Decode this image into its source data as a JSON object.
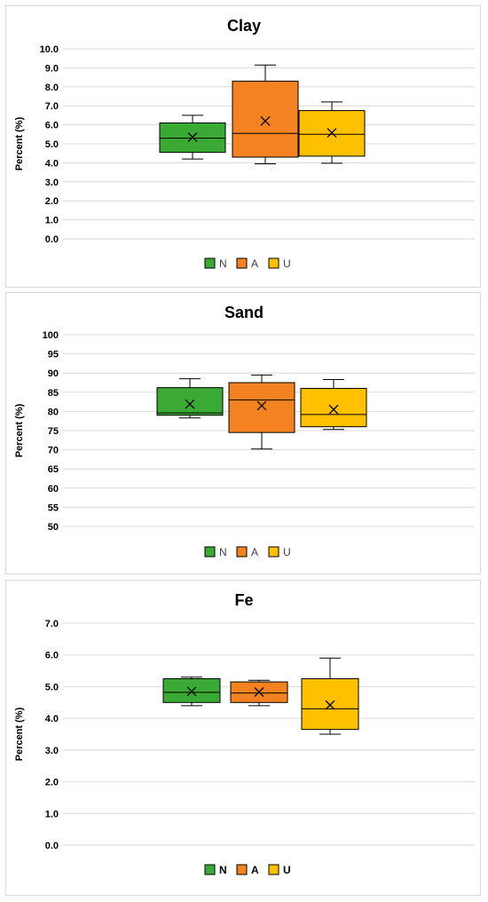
{
  "chart_data": [
    {
      "type": "box",
      "title": "Clay",
      "ylabel": "Percent (%)",
      "xlabel": "",
      "ylim": [
        0,
        10
      ],
      "y_ticks": [
        "0.0",
        "1.0",
        "2.0",
        "3.0",
        "4.0",
        "5.0",
        "6.0",
        "7.0",
        "8.0",
        "9.0",
        "10.0"
      ],
      "legend": "bottom",
      "grid": true,
      "series": [
        {
          "name": "N",
          "color": "#3aaa35",
          "min": 4.2,
          "q1": 4.55,
          "median": 5.3,
          "q3": 6.1,
          "max": 6.5,
          "mean": 5.35
        },
        {
          "name": "A",
          "color": "#f58220",
          "min": 3.95,
          "q1": 4.3,
          "median": 5.55,
          "q3": 8.3,
          "max": 9.15,
          "mean": 6.2
        },
        {
          "name": "U",
          "color": "#ffc000",
          "min": 3.98,
          "q1": 4.35,
          "median": 5.5,
          "q3": 6.75,
          "max": 7.2,
          "mean": 5.58
        }
      ]
    },
    {
      "type": "box",
      "title": "Sand",
      "ylabel": "Percent (%)",
      "xlabel": "",
      "ylim": [
        50,
        100
      ],
      "y_ticks": [
        "50",
        "55",
        "60",
        "65",
        "70",
        "75",
        "80",
        "85",
        "90",
        "95",
        "100"
      ],
      "legend": "bottom",
      "grid": true,
      "series": [
        {
          "name": "N",
          "color": "#3aaa35",
          "min": 78.3,
          "q1": 79.0,
          "median": 79.6,
          "q3": 86.2,
          "max": 88.5,
          "mean": 81.9
        },
        {
          "name": "A",
          "color": "#f58220",
          "min": 70.2,
          "q1": 74.5,
          "median": 83.0,
          "q3": 87.5,
          "max": 89.5,
          "mean": 81.5
        },
        {
          "name": "U",
          "color": "#ffc000",
          "min": 75.3,
          "q1": 76.0,
          "median": 79.2,
          "q3": 86.0,
          "max": 88.3,
          "mean": 80.5
        }
      ]
    },
    {
      "type": "box",
      "title": "Fe",
      "ylabel": "Percent (%)",
      "xlabel": "",
      "ylim": [
        0,
        7
      ],
      "y_ticks": [
        "0.0",
        "1.0",
        "2.0",
        "3.0",
        "4.0",
        "5.0",
        "6.0",
        "7.0"
      ],
      "legend": "bottom",
      "grid": true,
      "series": [
        {
          "name": "N",
          "color": "#3aaa35",
          "min": 4.4,
          "q1": 4.5,
          "median": 4.82,
          "q3": 5.25,
          "max": 5.3,
          "mean": 4.85
        },
        {
          "name": "A",
          "color": "#f58220",
          "min": 4.4,
          "q1": 4.5,
          "median": 4.8,
          "q3": 5.15,
          "max": 5.2,
          "mean": 4.83
        },
        {
          "name": "U",
          "color": "#ffc000",
          "min": 3.5,
          "q1": 3.65,
          "median": 4.3,
          "q3": 5.25,
          "max": 5.9,
          "mean": 4.42
        }
      ]
    }
  ]
}
